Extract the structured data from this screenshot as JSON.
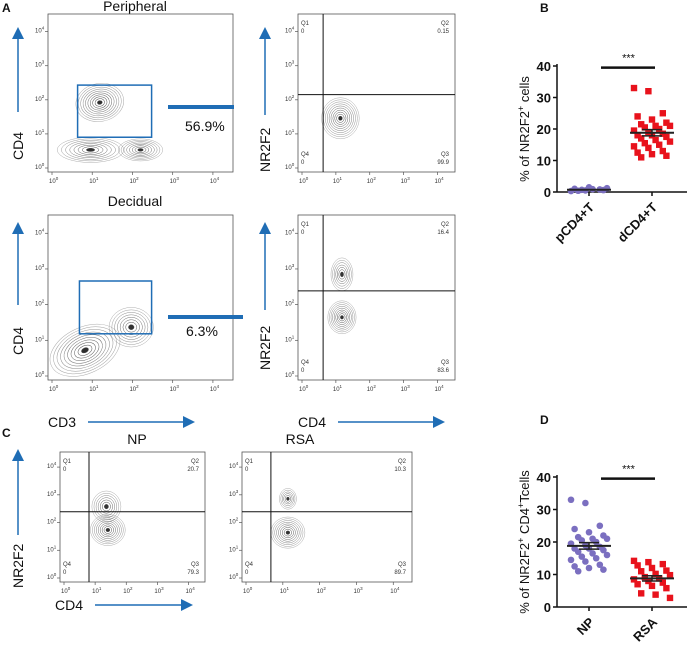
{
  "panels": {
    "A": "A",
    "B": "B",
    "C": "C",
    "D": "D"
  },
  "colors": {
    "blue": "#1f6db5",
    "purple": "#7b6fc0",
    "red": "#e8121c",
    "contour": "#333333"
  },
  "flow_tick_base": "10",
  "flow_tick_exps": [
    "0",
    "1",
    "2",
    "3",
    "4"
  ],
  "panel_a": {
    "peripheral": {
      "title": "Peripheral",
      "gate_percent": "56.9%",
      "quadrants": {
        "q1": "Q1",
        "q1v": "0",
        "q2": "Q2",
        "q2v": "0.15",
        "q3": "Q3",
        "q3v": "99.9",
        "q4": "Q4",
        "q4v": "0"
      }
    },
    "decidual": {
      "title": "Decidual",
      "gate_percent": "6.3%",
      "quadrants": {
        "q1": "Q1",
        "q1v": "0",
        "q2": "Q2",
        "q2v": "16.4",
        "q3": "Q3",
        "q3v": "83.6",
        "q4": "Q4",
        "q4v": "0"
      }
    },
    "y_label_left": "CD4",
    "y_label_right": "NR2F2",
    "x_label_left": "CD3",
    "x_label_right": "CD4"
  },
  "panel_c": {
    "np": {
      "title": "NP",
      "quadrants": {
        "q1": "Q1",
        "q1v": "0",
        "q2": "Q2",
        "q2v": "20.7",
        "q3": "Q3",
        "q3v": "79.3",
        "q4": "Q4",
        "q4v": "0"
      }
    },
    "rsa": {
      "title": "RSA",
      "quadrants": {
        "q1": "Q1",
        "q1v": "0",
        "q2": "Q2",
        "q2v": "10.3",
        "q3": "Q3",
        "q3v": "89.7",
        "q4": "Q4",
        "q4v": "0"
      }
    },
    "y_label": "NR2F2",
    "x_label": "CD4"
  },
  "chart_data": [
    {
      "type": "scatter",
      "panel": "B",
      "ylabel_parts": [
        "% of NR2F2",
        "+",
        " cells"
      ],
      "ylim": [
        0,
        40
      ],
      "yticks": [
        "0",
        "10",
        "20",
        "30",
        "40"
      ],
      "categories": [
        "pCD4+T",
        "dCD4+T"
      ],
      "significance": "***",
      "series": [
        {
          "name": "pCD4+T",
          "marker": "circle",
          "color": "#7b6fc0",
          "values": [
            0.3,
            0.5,
            0.8,
            1.0,
            1.5,
            0.6,
            0.4,
            0.9,
            1.2,
            0.7
          ],
          "mean": 0.7
        },
        {
          "name": "dCD4+T",
          "marker": "square",
          "color": "#e8121c",
          "values": [
            33,
            32,
            25,
            24,
            23,
            22,
            21.5,
            21,
            21,
            20.5,
            20,
            19.5,
            19,
            18.5,
            18,
            18,
            17.5,
            17,
            16.5,
            16,
            15.5,
            15,
            14.5,
            14,
            13,
            12.5,
            12,
            11.5,
            11
          ],
          "mean": 18.8,
          "sem": 1.0
        }
      ]
    },
    {
      "type": "scatter",
      "panel": "D",
      "ylabel_parts": [
        "% of NR2F2",
        "+",
        " CD4",
        "+",
        "Tcells"
      ],
      "ylim": [
        0,
        40
      ],
      "yticks": [
        "0",
        "10",
        "20",
        "30",
        "40"
      ],
      "categories": [
        "NP",
        "RSA"
      ],
      "significance": "***",
      "series": [
        {
          "name": "NP",
          "marker": "circle",
          "color": "#7b6fc0",
          "values": [
            33,
            32,
            25,
            24,
            23,
            22,
            21.5,
            21,
            21,
            20.5,
            20,
            19.5,
            19,
            18.5,
            18,
            18,
            17.5,
            17,
            16.5,
            16,
            15.5,
            15,
            14.5,
            14,
            13,
            12.5,
            12,
            11.5,
            11
          ],
          "mean": 18.8,
          "sem": 1.0
        },
        {
          "name": "RSA",
          "marker": "square",
          "color": "#e8121c",
          "values": [
            14.2,
            13.8,
            13.2,
            12.8,
            12,
            11.2,
            11,
            10.2,
            9.8,
            9.2,
            8.8,
            8.5,
            8,
            7.5,
            7,
            6.5,
            5.8,
            4.2,
            3.8,
            2.8
          ],
          "mean": 8.8,
          "sem": 0.8
        }
      ]
    }
  ]
}
